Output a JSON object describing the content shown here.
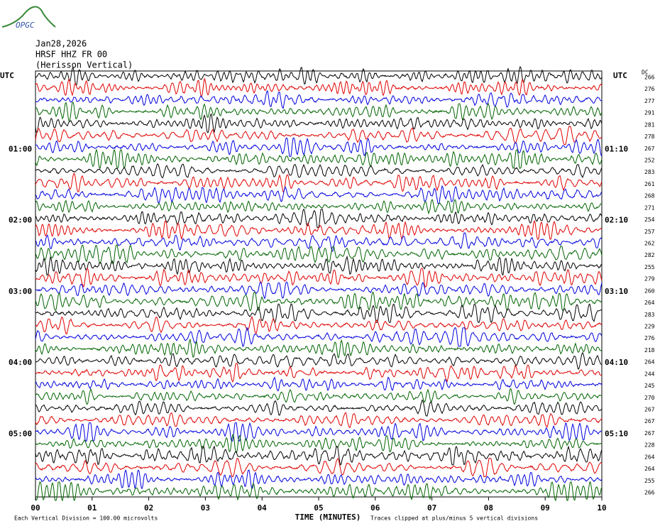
{
  "logo": "OPGC",
  "header": {
    "date": "Jan28,2026",
    "station": "HRSF HHZ FR 00",
    "name": "(Herisson Vertical)"
  },
  "chart_data": {
    "type": "helicorder",
    "left_axis_title": "UTC",
    "right_axis_title": "UTC",
    "dc_title": "DC",
    "left_labels": [
      "01:00",
      "02:00",
      "03:00",
      "04:00",
      "05:00"
    ],
    "right_labels": [
      "01:10",
      "02:10",
      "03:10",
      "04:10",
      "05:10"
    ],
    "dc_values": [
      266,
      276,
      277,
      291,
      281,
      278,
      267,
      252,
      283,
      261,
      268,
      271,
      254,
      257,
      262,
      282,
      255,
      279,
      260,
      264,
      283,
      229,
      276,
      218,
      264,
      244,
      245,
      270,
      267,
      267,
      267,
      228,
      264,
      264,
      255,
      266
    ],
    "trace_colors": [
      "#000000",
      "#e00000",
      "#0000e0",
      "#006400"
    ],
    "xlim": [
      0,
      10
    ],
    "xticks": [
      {
        "value": 0,
        "label": "00"
      },
      {
        "value": 1,
        "label": "01"
      },
      {
        "value": 2,
        "label": "02"
      },
      {
        "value": 3,
        "label": "03"
      },
      {
        "value": 4,
        "label": "04"
      },
      {
        "value": 5,
        "label": "05"
      },
      {
        "value": 6,
        "label": "06"
      },
      {
        "value": 7,
        "label": "07"
      },
      {
        "value": 8,
        "label": "08"
      },
      {
        "value": 9,
        "label": "09"
      },
      {
        "value": 10,
        "label": "10"
      }
    ],
    "x_label": "TIME (MINUTES)",
    "note_left": "Each Vertical Division =  100.00 microvolts",
    "note_right": "Traces clipped at plus/minus 5 vertical divisions"
  }
}
